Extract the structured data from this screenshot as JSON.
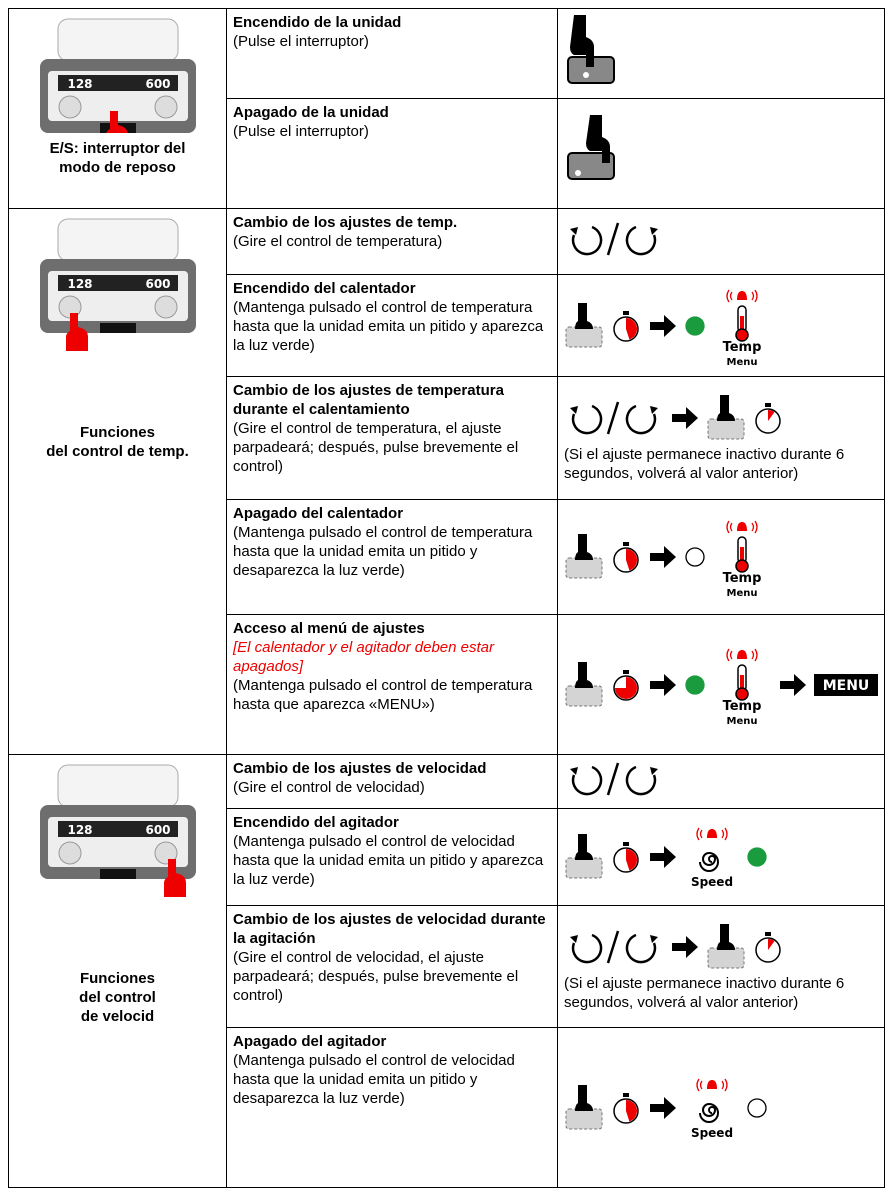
{
  "groups": [
    {
      "caption": [
        "E/S: interruptor del",
        "modo de  reposo"
      ],
      "display": [
        "128",
        "600"
      ],
      "rows": [
        {
          "title": "Encendido de la unidad",
          "desc": "(Pulse el interruptor)"
        },
        {
          "title": "Apagado de la unidad",
          "desc": "(Pulse el interruptor)"
        }
      ]
    },
    {
      "caption": [
        "Funciones",
        "del  control de  temp."
      ],
      "display": [
        "128",
        "600"
      ],
      "rows": [
        {
          "title": "Cambio de los ajustes de  temp.",
          "desc": "(Gire el control de temperatura)"
        },
        {
          "title": "Encendido del calentador",
          "desc": "(Mantenga pulsado el control de temperatura hasta que la unidad emita un pitido y aparezca la luz verde)",
          "icon_labels": [
            "Temp",
            "Menu"
          ]
        },
        {
          "title": "Cambio de los ajustes de  temperatura durante el  calentamiento",
          "desc": "(Gire el control de temperatura, el ajuste parpadeará; después, pulse brevemente el control)",
          "side_note": "(Si el ajuste permanece inactivo durante 6 segundos, volverá al valor anterior)"
        },
        {
          "title": "Apagado del calentador",
          "desc": "(Mantenga pulsado el control de temperatura hasta que la unidad emita un pitido y desaparezca la luz verde)",
          "icon_labels": [
            "Temp",
            "Menu"
          ]
        },
        {
          "title": "Acceso al menú de ajustes",
          "note": "[El calentador y el agitador deben estar apagados]",
          "desc": "(Mantenga pulsado el control de temperatura hasta que aparezca «MENU»)",
          "icon_labels": [
            "Temp",
            "Menu",
            "MENU"
          ]
        }
      ]
    },
    {
      "caption": [
        "Funciones",
        "del  control",
        "de  velocid"
      ],
      "display": [
        "128",
        "600"
      ],
      "rows": [
        {
          "title": "Cambio de los ajustes de  velocidad",
          "desc": "(Gire el control de velocidad)"
        },
        {
          "title": "Encendido del agitador",
          "desc": "(Mantenga pulsado el control de velocidad hasta que la unidad emita un pitido y aparezca la luz verde)",
          "icon_labels": [
            "Speed"
          ]
        },
        {
          "title": "Cambio de los ajustes de  velocidad durante la  agitación",
          "desc": "(Gire el control de velocidad, el ajuste parpadeará; después, pulse brevemente el control)",
          "side_note": "(Si el ajuste permanece inactivo durante 6 segundos, volverá al valor anterior)"
        },
        {
          "title": "Apagado del agitador",
          "desc": "(Mantenga pulsado el control de velocidad hasta que la unidad emita un pitido y desaparezca la luz verde)",
          "icon_labels": [
            "Speed"
          ]
        }
      ]
    }
  ]
}
